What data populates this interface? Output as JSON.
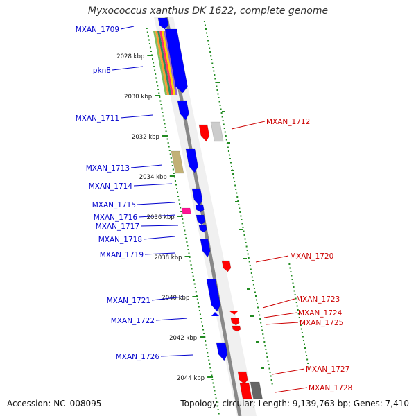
{
  "title": "Myxococcus xanthus DK 1622, complete genome",
  "footer": {
    "accession": "Accession: NC_008095",
    "topology": "Topology: circular; Length: 9,139,763 bp; Genes: 7,410"
  },
  "colors": {
    "forward_gene": "#0000ff",
    "reverse_gene": "#ff0000",
    "backbone": "#888888",
    "ruler": "#228b22",
    "pseudo_gene": "#c2b176",
    "rna_gene": "#ff1493"
  },
  "ruler_ticks": [
    "2028 kbp",
    "2030 kbp",
    "2032 kbp",
    "2034 kbp",
    "2036 kbp",
    "2038 kbp",
    "2040 kbp",
    "2042 kbp",
    "2044 kbp"
  ],
  "genes_left": [
    {
      "name": "MXAN_1709"
    },
    {
      "name": "pkn8"
    },
    {
      "name": "MXAN_1711"
    },
    {
      "name": "MXAN_1713"
    },
    {
      "name": "MXAN_1714"
    },
    {
      "name": "MXAN_1715"
    },
    {
      "name": "MXAN_1716"
    },
    {
      "name": "MXAN_1717"
    },
    {
      "name": "MXAN_1718"
    },
    {
      "name": "MXAN_1719"
    },
    {
      "name": "MXAN_1721"
    },
    {
      "name": "MXAN_1722"
    },
    {
      "name": "MXAN_1726"
    }
  ],
  "genes_right": [
    {
      "name": "MXAN_1712"
    },
    {
      "name": "MXAN_1720"
    },
    {
      "name": "MXAN_1723"
    },
    {
      "name": "MXAN_1724"
    },
    {
      "name": "MXAN_1725"
    },
    {
      "name": "MXAN_1727"
    },
    {
      "name": "MXAN_1728"
    }
  ]
}
